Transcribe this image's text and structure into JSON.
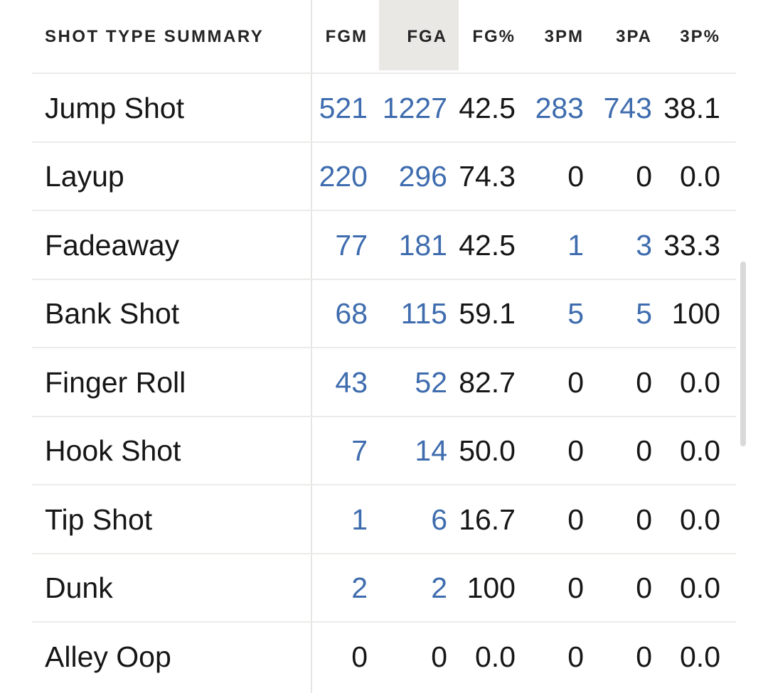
{
  "colors": {
    "accent_blue": "#3e6cae",
    "selected_column_bg": "#e9e8e5",
    "row_separator": "#ecebe9",
    "column_divider": "#e8e6e3",
    "scrollbar": "#d9d9d9",
    "text": "#161616"
  },
  "table": {
    "title": "SHOT TYPE SUMMARY",
    "selected_column": "FGA",
    "columns": [
      "FGM",
      "FGA",
      "FG%",
      "3PM",
      "3PA",
      "3P%"
    ],
    "rows": [
      {
        "label": "Jump Shot",
        "fgm": "521",
        "fga": "1227",
        "fgp": "42.5",
        "tpm": "283",
        "tpa": "743",
        "tpp": "38.1"
      },
      {
        "label": "Layup",
        "fgm": "220",
        "fga": "296",
        "fgp": "74.3",
        "tpm": "0",
        "tpa": "0",
        "tpp": "0.0"
      },
      {
        "label": "Fadeaway",
        "fgm": "77",
        "fga": "181",
        "fgp": "42.5",
        "tpm": "1",
        "tpa": "3",
        "tpp": "33.3"
      },
      {
        "label": "Bank Shot",
        "fgm": "68",
        "fga": "115",
        "fgp": "59.1",
        "tpm": "5",
        "tpa": "5",
        "tpp": "100"
      },
      {
        "label": "Finger Roll",
        "fgm": "43",
        "fga": "52",
        "fgp": "82.7",
        "tpm": "0",
        "tpa": "0",
        "tpp": "0.0"
      },
      {
        "label": "Hook Shot",
        "fgm": "7",
        "fga": "14",
        "fgp": "50.0",
        "tpm": "0",
        "tpa": "0",
        "tpp": "0.0"
      },
      {
        "label": "Tip Shot",
        "fgm": "1",
        "fga": "6",
        "fgp": "16.7",
        "tpm": "0",
        "tpa": "0",
        "tpp": "0.0"
      },
      {
        "label": "Dunk",
        "fgm": "2",
        "fga": "2",
        "fgp": "100",
        "tpm": "0",
        "tpa": "0",
        "tpp": "0.0"
      },
      {
        "label": "Alley Oop",
        "fgm": "0",
        "fga": "0",
        "fgp": "0.0",
        "tpm": "0",
        "tpa": "0",
        "tpp": "0.0"
      }
    ]
  }
}
